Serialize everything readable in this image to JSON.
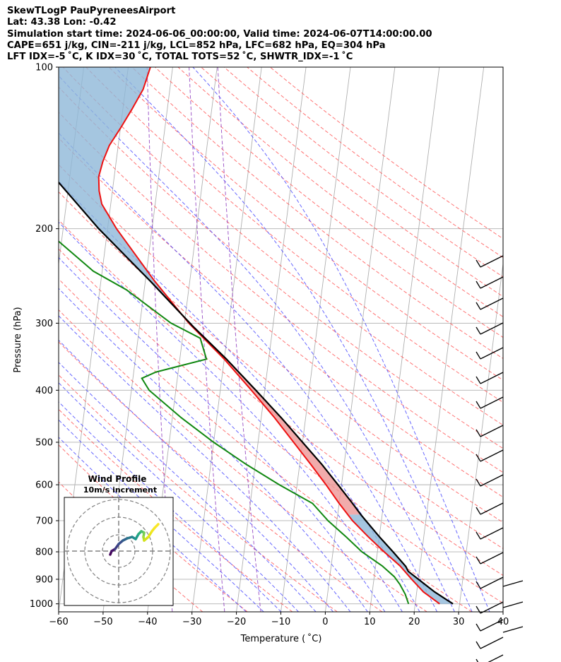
{
  "header": {
    "line1": "SkewTLogP PauPyreneesAirport",
    "line2": "Lat: 43.38   Lon: -0.42",
    "line3": "Simulation start time: 2024-06-06_00:00:00, Valid time: 2024-06-07T14:00:00.00",
    "line4": "CAPE=651 j/kg, CIN=-211 j/kg, LCL=852 hPa, LFC=682 hPa, EQ=304 hPa",
    "line5": "LFT IDX=-5 ˚C, K IDX=30 ˚C, TOTAL TOTS=52 ˚C, SHWTR_IDX=-1 ˚C"
  },
  "chart_data": {
    "type": "skewt-logp",
    "xlabel": "Temperature ( ˚C)",
    "ylabel": "Pressure (hPa)",
    "xlim": [
      -60,
      40
    ],
    "ylim": [
      1035,
      100
    ],
    "x_ticks": [
      "−60",
      "−50",
      "−40",
      "−30",
      "−20",
      "−10",
      "0",
      "10",
      "20",
      "30",
      "40"
    ],
    "y_ticks": [
      "1000",
      "900",
      "800",
      "700",
      "600",
      "500",
      "400",
      "300",
      "200",
      "100"
    ],
    "temperature": [
      [
        1000,
        25.5
      ],
      [
        950,
        21.5
      ],
      [
        900,
        18.5
      ],
      [
        850,
        15.5
      ],
      [
        800,
        11.5
      ],
      [
        750,
        7.5
      ],
      [
        700,
        3.5
      ],
      [
        650,
        0
      ],
      [
        600,
        -3.5
      ],
      [
        550,
        -7.5
      ],
      [
        500,
        -12
      ],
      [
        450,
        -17
      ],
      [
        400,
        -23
      ],
      [
        350,
        -30
      ],
      [
        300,
        -39
      ],
      [
        250,
        -48
      ],
      [
        200,
        -58
      ],
      [
        180,
        -62
      ],
      [
        170,
        -63
      ],
      [
        160,
        -63.5
      ],
      [
        150,
        -63
      ],
      [
        140,
        -62
      ],
      [
        130,
        -60
      ],
      [
        120,
        -58
      ],
      [
        110,
        -56
      ],
      [
        100,
        -55
      ]
    ],
    "dewpoint": [
      [
        1000,
        18.5
      ],
      [
        960,
        17.5
      ],
      [
        920,
        16
      ],
      [
        890,
        14.5
      ],
      [
        850,
        11.5
      ],
      [
        800,
        6.5
      ],
      [
        750,
        2.5
      ],
      [
        700,
        -2
      ],
      [
        650,
        -6
      ],
      [
        600,
        -14
      ],
      [
        550,
        -22
      ],
      [
        500,
        -30
      ],
      [
        450,
        -38
      ],
      [
        400,
        -46
      ],
      [
        380,
        -48
      ],
      [
        370,
        -45
      ],
      [
        350,
        -34
      ],
      [
        320,
        -36
      ],
      [
        300,
        -43
      ],
      [
        260,
        -54
      ],
      [
        240,
        -62
      ],
      [
        210,
        -71
      ],
      [
        190,
        -77
      ],
      [
        175,
        -80
      ],
      [
        170,
        -80
      ],
      [
        160,
        -80
      ],
      [
        155,
        -84
      ],
      [
        150,
        -88
      ],
      [
        140,
        -90
      ],
      [
        130,
        -90
      ],
      [
        120,
        -89
      ],
      [
        110,
        -87.5
      ],
      [
        100,
        -86
      ]
    ],
    "parcel": [
      [
        1000,
        28.5
      ],
      [
        950,
        24
      ],
      [
        900,
        20
      ],
      [
        870,
        17.5
      ],
      [
        852,
        16.8
      ],
      [
        800,
        13.5
      ],
      [
        750,
        10
      ],
      [
        700,
        6.5
      ],
      [
        682,
        5.2
      ],
      [
        650,
        3
      ],
      [
        600,
        -0.8
      ],
      [
        550,
        -5
      ],
      [
        500,
        -10
      ],
      [
        450,
        -15.5
      ],
      [
        400,
        -22
      ],
      [
        350,
        -29.5
      ],
      [
        304,
        -38
      ],
      [
        250,
        -49
      ],
      [
        200,
        -62
      ],
      [
        150,
        -77
      ],
      [
        120,
        -88
      ],
      [
        100,
        -97
      ]
    ],
    "wind_profile_inset": {
      "title": "Wind Profile",
      "subtitle": "10m/s increment"
    }
  }
}
